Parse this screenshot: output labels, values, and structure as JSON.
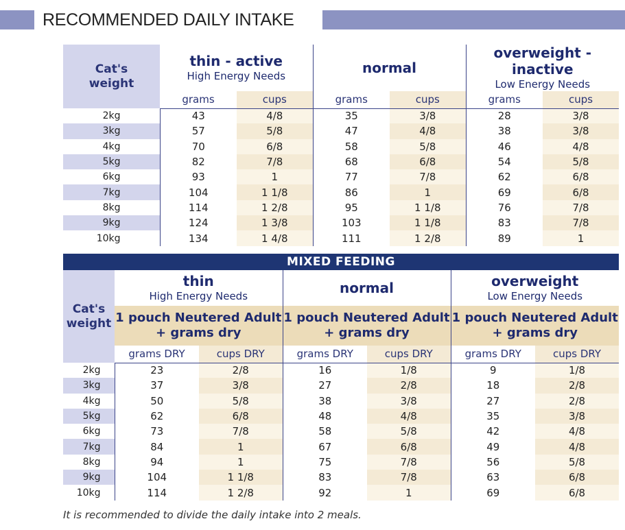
{
  "header": {
    "title": "RECOMMENDED DAILY INTAKE"
  },
  "table1": {
    "weight_header_line1": "Cat's",
    "weight_header_line2": "weight",
    "groups": [
      {
        "title": "thin - active",
        "subtitle": "High Energy Needs"
      },
      {
        "title": "normal",
        "subtitle": ""
      },
      {
        "title": "overweight - inactive",
        "subtitle": "Low Energy Needs"
      }
    ],
    "sub_headers": [
      "grams",
      "cups",
      "grams",
      "cups",
      "grams",
      "cups"
    ],
    "rows": [
      {
        "weight": "2kg",
        "values": [
          "43",
          "4/8",
          "35",
          "3/8",
          "28",
          "3/8"
        ]
      },
      {
        "weight": "3kg",
        "values": [
          "57",
          "5/8",
          "47",
          "4/8",
          "38",
          "3/8"
        ]
      },
      {
        "weight": "4kg",
        "values": [
          "70",
          "6/8",
          "58",
          "5/8",
          "46",
          "4/8"
        ]
      },
      {
        "weight": "5kg",
        "values": [
          "82",
          "7/8",
          "68",
          "6/8",
          "54",
          "5/8"
        ]
      },
      {
        "weight": "6kg",
        "values": [
          "93",
          "1",
          "77",
          "7/8",
          "62",
          "6/8"
        ]
      },
      {
        "weight": "7kg",
        "values": [
          "104",
          "1 1/8",
          "86",
          "1",
          "69",
          "6/8"
        ]
      },
      {
        "weight": "8kg",
        "values": [
          "114",
          "1 2/8",
          "95",
          "1 1/8",
          "76",
          "7/8"
        ]
      },
      {
        "weight": "9kg",
        "values": [
          "124",
          "1 3/8",
          "103",
          "1 1/8",
          "83",
          "7/8"
        ]
      },
      {
        "weight": "10kg",
        "values": [
          "134",
          "1 4/8",
          "111",
          "1 2/8",
          "89",
          "1"
        ]
      }
    ]
  },
  "table2": {
    "banner": "MIXED FEEDING",
    "weight_header_line1": "Cat's",
    "weight_header_line2": "weight",
    "groups": [
      {
        "title": "thin",
        "subtitle": "High Energy Needs",
        "pouch_line1": "1 pouch Neutered Adult",
        "pouch_line2": "+ grams dry"
      },
      {
        "title": "normal",
        "subtitle": "",
        "pouch_line1": "1 pouch Neutered Adult",
        "pouch_line2": "+ grams dry"
      },
      {
        "title": "overweight",
        "subtitle": "Low Energy Needs",
        "pouch_line1": "1 pouch Neutered Adult",
        "pouch_line2": "+ grams dry"
      }
    ],
    "sub_headers": [
      "grams DRY",
      "cups DRY",
      "grams DRY",
      "cups DRY",
      "grams DRY",
      "cups DRY"
    ],
    "rows": [
      {
        "weight": "2kg",
        "values": [
          "23",
          "2/8",
          "16",
          "1/8",
          "9",
          "1/8"
        ]
      },
      {
        "weight": "3kg",
        "values": [
          "37",
          "3/8",
          "27",
          "2/8",
          "18",
          "2/8"
        ]
      },
      {
        "weight": "4kg",
        "values": [
          "50",
          "5/8",
          "38",
          "3/8",
          "27",
          "2/8"
        ]
      },
      {
        "weight": "5kg",
        "values": [
          "62",
          "6/8",
          "48",
          "4/8",
          "35",
          "3/8"
        ]
      },
      {
        "weight": "6kg",
        "values": [
          "73",
          "7/8",
          "58",
          "5/8",
          "42",
          "4/8"
        ]
      },
      {
        "weight": "7kg",
        "values": [
          "84",
          "1",
          "67",
          "6/8",
          "49",
          "4/8"
        ]
      },
      {
        "weight": "8kg",
        "values": [
          "94",
          "1",
          "75",
          "7/8",
          "56",
          "5/8"
        ]
      },
      {
        "weight": "9kg",
        "values": [
          "104",
          "1 1/8",
          "83",
          "7/8",
          "63",
          "6/8"
        ]
      },
      {
        "weight": "10kg",
        "values": [
          "114",
          "1 2/8",
          "92",
          "1",
          "69",
          "6/8"
        ]
      }
    ]
  },
  "note": "It is recommended to divide the daily intake into 2 meals.",
  "colors": {
    "header_bar": "#8c93c2",
    "weight_band": "#d3d5ec",
    "cups_band": "#f4ead5",
    "pouch_band": "#ecdcb9",
    "banner": "#1e3573",
    "heading_text": "#1e2a6e"
  }
}
